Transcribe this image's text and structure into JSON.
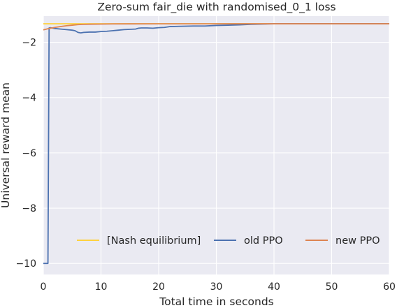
{
  "chart_data": {
    "type": "line",
    "title": "Zero-sum fair_die with randomised_0_1 loss",
    "xlabel": "Total time in seconds",
    "ylabel": "Universal reward mean",
    "xlim": [
      0,
      60
    ],
    "ylim": [
      -10.4,
      -1.05
    ],
    "xticks": [
      0,
      10,
      20,
      30,
      40,
      50,
      60
    ],
    "yticks": [
      -10,
      -8,
      -6,
      -4,
      -2
    ],
    "xtick_labels": [
      "0",
      "10",
      "20",
      "30",
      "40",
      "50",
      "60"
    ],
    "ytick_labels": [
      "−10",
      "−8",
      "−6",
      "−4",
      "−2"
    ],
    "grid": true,
    "legend_position": "lower-center",
    "series": [
      {
        "name": "[Nash equilibrium]",
        "color": "#ffd23f",
        "x": [
          0,
          5,
          60
        ],
        "y": [
          -1.33,
          -1.33,
          -1.33
        ]
      },
      {
        "name": "old PPO",
        "color": "#4c72b0",
        "x": [
          0,
          0.3,
          0.8,
          1.0,
          1.2,
          2,
          3,
          4,
          5,
          5.5,
          6,
          6.5,
          7,
          8,
          9,
          10,
          11,
          12,
          13,
          14,
          15,
          16,
          16.5,
          17,
          18,
          19,
          20,
          21,
          22,
          24,
          26,
          28,
          30,
          32,
          34,
          36,
          38,
          40,
          45,
          50,
          55,
          60
        ],
        "y": [
          -10.0,
          -10.0,
          -10.0,
          -1.48,
          -1.47,
          -1.5,
          -1.52,
          -1.54,
          -1.56,
          -1.58,
          -1.64,
          -1.66,
          -1.64,
          -1.63,
          -1.63,
          -1.61,
          -1.6,
          -1.58,
          -1.56,
          -1.54,
          -1.53,
          -1.52,
          -1.49,
          -1.48,
          -1.48,
          -1.49,
          -1.47,
          -1.46,
          -1.43,
          -1.42,
          -1.41,
          -1.41,
          -1.39,
          -1.38,
          -1.37,
          -1.35,
          -1.34,
          -1.33,
          -1.33,
          -1.33,
          -1.33,
          -1.33
        ]
      },
      {
        "name": "new PPO",
        "color": "#dd8452",
        "x": [
          0,
          1,
          2,
          3,
          4,
          5,
          6,
          7,
          8,
          10,
          12,
          15,
          20,
          30,
          40,
          50,
          60
        ],
        "y": [
          -1.55,
          -1.5,
          -1.46,
          -1.43,
          -1.4,
          -1.38,
          -1.36,
          -1.35,
          -1.345,
          -1.34,
          -1.335,
          -1.333,
          -1.332,
          -1.331,
          -1.33,
          -1.33,
          -1.33
        ]
      }
    ]
  }
}
